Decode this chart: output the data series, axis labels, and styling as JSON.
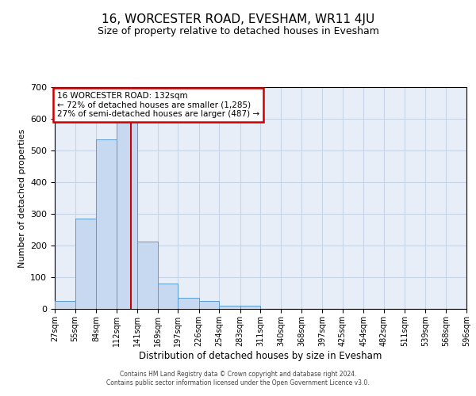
{
  "title": "16, WORCESTER ROAD, EVESHAM, WR11 4JU",
  "subtitle": "Size of property relative to detached houses in Evesham",
  "xlabel": "Distribution of detached houses by size in Evesham",
  "ylabel": "Number of detached properties",
  "bar_edges": [
    27,
    55,
    84,
    112,
    141,
    169,
    197,
    226,
    254,
    283,
    311,
    340,
    368,
    397,
    425,
    454,
    482,
    511,
    539,
    568,
    596
  ],
  "bar_heights": [
    25,
    285,
    535,
    590,
    212,
    80,
    36,
    24,
    10,
    10,
    0,
    0,
    0,
    0,
    0,
    0,
    0,
    0,
    0,
    0
  ],
  "bar_color": "#c6d9f0",
  "bar_edge_color": "#5b9bd5",
  "vline_x": 132,
  "vline_color": "#cc0000",
  "ylim": [
    0,
    700
  ],
  "yticks": [
    0,
    100,
    200,
    300,
    400,
    500,
    600,
    700
  ],
  "xtick_labels": [
    "27sqm",
    "55sqm",
    "84sqm",
    "112sqm",
    "141sqm",
    "169sqm",
    "197sqm",
    "226sqm",
    "254sqm",
    "283sqm",
    "311sqm",
    "340sqm",
    "368sqm",
    "397sqm",
    "425sqm",
    "454sqm",
    "482sqm",
    "511sqm",
    "539sqm",
    "568sqm",
    "596sqm"
  ],
  "annotation_title": "16 WORCESTER ROAD: 132sqm",
  "annotation_line1": "← 72% of detached houses are smaller (1,285)",
  "annotation_line2": "27% of semi-detached houses are larger (487) →",
  "annotation_box_facecolor": "#ffffff",
  "annotation_box_edgecolor": "#cc0000",
  "footer_line1": "Contains HM Land Registry data © Crown copyright and database right 2024.",
  "footer_line2": "Contains public sector information licensed under the Open Government Licence v3.0.",
  "grid_color": "#c8d4e8",
  "background_color": "#e8eef8",
  "title_fontsize": 11,
  "subtitle_fontsize": 9
}
